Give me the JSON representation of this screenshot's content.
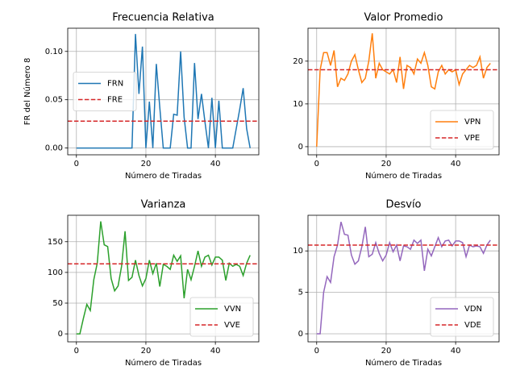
{
  "chart_data": [
    {
      "type": "line",
      "title": "Frecuencia Relativa",
      "xlabel": "Número de Tiradas",
      "ylabel": "FR del Número 8",
      "x": [
        0,
        1,
        2,
        3,
        4,
        5,
        6,
        7,
        8,
        9,
        10,
        11,
        12,
        13,
        14,
        15,
        16,
        17,
        18,
        19,
        20,
        21,
        22,
        23,
        24,
        25,
        26,
        27,
        28,
        29,
        30,
        31,
        32,
        33,
        34,
        35,
        36,
        37,
        38,
        39,
        40,
        41,
        42,
        43,
        44,
        45,
        46,
        47,
        48,
        49,
        50
      ],
      "series": [
        {
          "name": "FRN",
          "color": "#1f77b4",
          "values": [
            0,
            0,
            0,
            0,
            0,
            0,
            0,
            0,
            0,
            0,
            0,
            0,
            0,
            0,
            0,
            0,
            0,
            0.118,
            0.056,
            0.105,
            0,
            0.048,
            0,
            0.087,
            0.042,
            0,
            0,
            0,
            0.035,
            0.034,
            0.1,
            0.032,
            0,
            0,
            0.088,
            0.03,
            0.056,
            0.027,
            0,
            0.052,
            0,
            0.049,
            0,
            0,
            0,
            0,
            0.02,
            0.04,
            0.062,
            0.02,
            0
          ]
        }
      ],
      "reference_lines": [
        {
          "name": "FRE",
          "color": "#d62728",
          "value": 0.0278
        }
      ],
      "xlim": [
        -2.5,
        52.5
      ],
      "xticks": [
        0,
        20,
        40
      ],
      "ylim": [
        -0.007,
        0.124
      ],
      "yticks": [
        {
          "value": 0,
          "label": "0.00"
        },
        {
          "value": 0.05,
          "label": "0.05"
        },
        {
          "value": 0.1,
          "label": "0.10"
        }
      ],
      "grid": true,
      "legend": "center left"
    },
    {
      "type": "line",
      "title": "Valor Promedio",
      "xlabel": "Número de Tiradas",
      "x": [
        0,
        1,
        2,
        3,
        4,
        5,
        6,
        7,
        8,
        9,
        10,
        11,
        12,
        13,
        14,
        15,
        16,
        17,
        18,
        19,
        20,
        21,
        22,
        23,
        24,
        25,
        26,
        27,
        28,
        29,
        30,
        31,
        32,
        33,
        34,
        35,
        36,
        37,
        38,
        39,
        40,
        41,
        42,
        43,
        44,
        45,
        46,
        47,
        48,
        49,
        50
      ],
      "series": [
        {
          "name": "VPN",
          "color": "#ff7f0e",
          "values": [
            0,
            18,
            22,
            22,
            19,
            22.5,
            14,
            16,
            15.5,
            17,
            20,
            21.5,
            18,
            15,
            16,
            20,
            26.5,
            16,
            19.5,
            18,
            17.5,
            17,
            18,
            15,
            21,
            13.5,
            19,
            18.5,
            17,
            20.5,
            19.5,
            22,
            19,
            14,
            13.5,
            17.5,
            19,
            17,
            18,
            17.5,
            18,
            14.5,
            17,
            18,
            19,
            18.5,
            19,
            21,
            16,
            18.5,
            19.5
          ]
        }
      ],
      "reference_lines": [
        {
          "name": "VPE",
          "color": "#d62728",
          "value": 18
        }
      ],
      "xlim": [
        -2.5,
        52.5
      ],
      "xticks": [
        0,
        20,
        40
      ],
      "ylim": [
        -1.9,
        27.7
      ],
      "yticks": [
        0,
        10,
        20
      ],
      "grid": true,
      "legend": "lower right"
    },
    {
      "type": "line",
      "title": "Varianza",
      "xlabel": "Número de Tiradas",
      "x": [
        0,
        1,
        2,
        3,
        4,
        5,
        6,
        7,
        8,
        9,
        10,
        11,
        12,
        13,
        14,
        15,
        16,
        17,
        18,
        19,
        20,
        21,
        22,
        23,
        24,
        25,
        26,
        27,
        28,
        29,
        30,
        31,
        32,
        33,
        34,
        35,
        36,
        37,
        38,
        39,
        40,
        41,
        42,
        43,
        44,
        45,
        46,
        47,
        48,
        49,
        50
      ],
      "series": [
        {
          "name": "VVN",
          "color": "#2ca02c",
          "values": [
            0,
            0,
            25,
            48,
            38,
            88,
            115,
            183,
            145,
            142,
            90,
            70,
            78,
            110,
            167,
            87,
            92,
            120,
            95,
            78,
            90,
            120,
            98,
            115,
            77,
            113,
            110,
            105,
            128,
            118,
            127,
            58,
            105,
            88,
            110,
            135,
            110,
            125,
            128,
            112,
            125,
            125,
            120,
            87,
            115,
            110,
            113,
            110,
            95,
            115,
            128
          ]
        }
      ],
      "reference_lines": [
        {
          "name": "VVE",
          "color": "#d62728",
          "value": 114
        }
      ],
      "xlim": [
        -2.5,
        52.5
      ],
      "xticks": [
        0,
        20,
        40
      ],
      "ylim": [
        -13,
        193
      ],
      "yticks": [
        0,
        50,
        100,
        150
      ],
      "grid": true,
      "legend": "lower right"
    },
    {
      "type": "line",
      "title": "Desvío",
      "xlabel": "Número de Tiradas",
      "x": [
        0,
        1,
        2,
        3,
        4,
        5,
        6,
        7,
        8,
        9,
        10,
        11,
        12,
        13,
        14,
        15,
        16,
        17,
        18,
        19,
        20,
        21,
        22,
        23,
        24,
        25,
        26,
        27,
        28,
        29,
        30,
        31,
        32,
        33,
        34,
        35,
        36,
        37,
        38,
        39,
        40,
        41,
        42,
        43,
        44,
        45,
        46,
        47,
        48,
        49,
        50
      ],
      "series": [
        {
          "name": "VDN",
          "color": "#9467bd",
          "values": [
            0,
            0,
            5,
            6.9,
            6.2,
            9.3,
            10.7,
            13.5,
            12,
            11.9,
            9.5,
            8.4,
            8.8,
            10.5,
            12.9,
            9.3,
            9.6,
            11,
            9.7,
            8.8,
            9.5,
            11,
            9.9,
            10.7,
            8.8,
            10.6,
            10.5,
            10.2,
            11.3,
            10.9,
            11.3,
            7.6,
            10.2,
            9.4,
            10.5,
            11.6,
            10.5,
            11.2,
            11.3,
            10.6,
            11.2,
            11.2,
            11,
            9.3,
            10.7,
            10.5,
            10.6,
            10.5,
            9.7,
            10.7,
            11.3
          ]
        }
      ],
      "reference_lines": [
        {
          "name": "VDE",
          "color": "#d62728",
          "value": 10.7
        }
      ],
      "xlim": [
        -2.5,
        52.5
      ],
      "xticks": [
        0,
        20,
        40
      ],
      "ylim": [
        -0.97,
        14.3
      ],
      "yticks": [
        0,
        5,
        10
      ],
      "grid": true,
      "legend": "lower right"
    }
  ]
}
